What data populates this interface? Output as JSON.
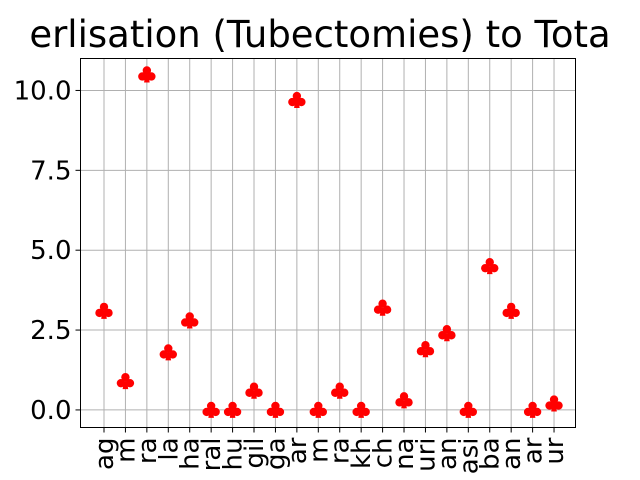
{
  "chart_data": {
    "type": "scatter",
    "title": "erlisation (Tubectomies) to Tota",
    "xlabel": "",
    "ylabel": "",
    "categories": [
      "ag",
      "m",
      "ra",
      "la",
      "ha",
      "ral",
      "hu",
      "gil",
      "ga",
      "ar",
      "m",
      "ra",
      "kh",
      "ch",
      "na",
      "uri",
      "an",
      "asi",
      "ba",
      "an",
      "ar",
      "ur"
    ],
    "values": [
      3.1,
      0.9,
      10.5,
      1.8,
      2.8,
      0.0,
      0.0,
      0.6,
      0.0,
      9.7,
      0.0,
      0.6,
      0.0,
      3.2,
      0.3,
      1.9,
      2.4,
      0.0,
      4.5,
      3.1,
      0.0,
      0.2
    ],
    "ylim": [
      -0.55,
      11.0
    ],
    "yticks": [
      0.0,
      2.5,
      5.0,
      7.5,
      10.0
    ],
    "ytick_labels": [
      "0.0",
      "2.5",
      "5.0",
      "7.5",
      "10.0"
    ],
    "marker": "club",
    "grid": true
  },
  "colors": {
    "marker": "#ff0000",
    "grid": "#b0b0b0",
    "axes": "#000000"
  }
}
